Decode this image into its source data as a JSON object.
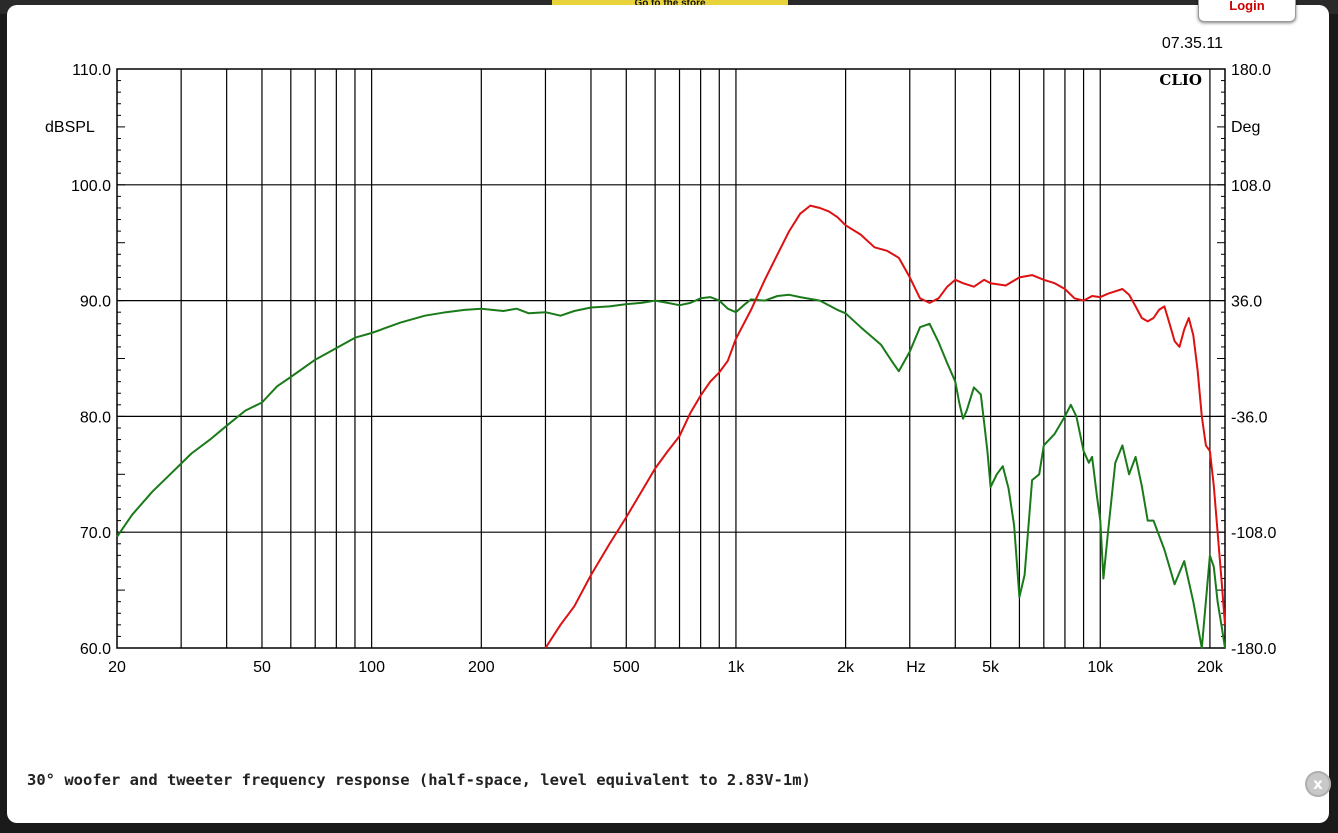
{
  "page": {
    "ad_banner": "Go to the store",
    "login_label": "Login",
    "close_label": "x",
    "caption": "30° woofer and tweeter frequency response (half-space, level equivalent to 2.83V-1m)"
  },
  "chart_data": {
    "type": "line",
    "timestamp": "07.35.11",
    "brand": "CLIO",
    "x_scale": "log",
    "xlim": [
      20,
      22000
    ],
    "x_unit": "Hz",
    "x_ticks": [
      20,
      50,
      100,
      200,
      500,
      1000,
      2000,
      5000,
      10000,
      20000
    ],
    "x_tick_labels": [
      "20",
      "50",
      "100",
      "200",
      "500",
      "1k",
      "2k",
      "5k",
      "10k",
      "20k"
    ],
    "ylabel_left": "dBSPL",
    "ylim_left": [
      60,
      110
    ],
    "y_ticks_left": [
      "110.0",
      "100.0",
      "90.0",
      "80.0",
      "70.0",
      "60.0"
    ],
    "ylabel_right": "Deg",
    "ylim_right": [
      -180,
      180
    ],
    "y_ticks_right": [
      "180.0",
      "108.0",
      "36.0",
      "-36.0",
      "-108.0",
      "-180.0"
    ],
    "grid": true,
    "series": [
      {
        "color": "#1a7a1a",
        "x": [
          20,
          22,
          25,
          28,
          32,
          36,
          40,
          45,
          50,
          55,
          60,
          70,
          80,
          90,
          100,
          120,
          140,
          160,
          180,
          200,
          230,
          250,
          270,
          300,
          330,
          360,
          400,
          450,
          500,
          550,
          600,
          650,
          700,
          750,
          800,
          850,
          900,
          950,
          1000,
          1050,
          1100,
          1200,
          1300,
          1400,
          1500,
          1700,
          1900,
          2000,
          2200,
          2500,
          2700,
          2800,
          3000,
          3200,
          3400,
          3600,
          3800,
          4000,
          4100,
          4200,
          4300,
          4500,
          4700,
          4800,
          4900,
          5000,
          5200,
          5400,
          5600,
          5800,
          6000,
          6200,
          6500,
          6800,
          7000,
          7500,
          8000,
          8300,
          8600,
          9000,
          9300,
          9500,
          9800,
          10000,
          10200,
          10500,
          11000,
          11500,
          12000,
          12500,
          13000,
          13500,
          14000,
          15000,
          16000,
          17000,
          18000,
          19000,
          20000,
          20500,
          21000,
          21500,
          22000
        ],
        "values": [
          69.6,
          71.5,
          73.5,
          75.0,
          76.8,
          78.0,
          79.2,
          80.5,
          81.2,
          82.6,
          83.4,
          84.9,
          85.9,
          86.8,
          87.2,
          88.1,
          88.7,
          89.0,
          89.2,
          89.3,
          89.1,
          89.3,
          88.9,
          89.0,
          88.7,
          89.1,
          89.4,
          89.5,
          89.7,
          89.8,
          90.0,
          89.8,
          89.6,
          89.8,
          90.2,
          90.3,
          90.0,
          89.3,
          89.0,
          89.6,
          90.1,
          90.0,
          90.4,
          90.5,
          90.3,
          90.0,
          89.2,
          88.9,
          87.7,
          86.2,
          84.6,
          83.9,
          85.6,
          87.7,
          88.0,
          86.4,
          84.6,
          83.0,
          81.2,
          79.8,
          80.5,
          82.5,
          81.9,
          79.5,
          77.0,
          73.9,
          75.0,
          75.7,
          73.8,
          70.6,
          64.4,
          66.3,
          74.5,
          75.0,
          77.5,
          78.5,
          80.0,
          81.0,
          80.0,
          77.0,
          76.0,
          76.5,
          73.0,
          71.0,
          66.0,
          70.0,
          76.0,
          77.5,
          75.0,
          76.5,
          74.0,
          71.0,
          71.0,
          68.5,
          65.5,
          67.5,
          64.0,
          60.0,
          68.0,
          67.0,
          64.0,
          62.0,
          60.0
        ]
      },
      {
        "color": "#dd1111",
        "x": [
          300,
          330,
          360,
          400,
          450,
          500,
          550,
          600,
          650,
          700,
          750,
          800,
          850,
          900,
          950,
          1000,
          1100,
          1200,
          1300,
          1400,
          1500,
          1600,
          1700,
          1800,
          1900,
          2000,
          2200,
          2400,
          2600,
          2800,
          3000,
          3200,
          3400,
          3600,
          3800,
          4000,
          4200,
          4500,
          4800,
          5000,
          5500,
          6000,
          6500,
          7000,
          7500,
          8000,
          8500,
          9000,
          9500,
          10000,
          10500,
          11000,
          11500,
          12000,
          12500,
          13000,
          13500,
          14000,
          14500,
          15000,
          15500,
          16000,
          16500,
          17000,
          17500,
          18000,
          18500,
          19000,
          19500,
          20000,
          20500,
          21000,
          21500,
          22000
        ],
        "values": [
          60.0,
          62.0,
          63.6,
          66.3,
          69.0,
          71.3,
          73.5,
          75.5,
          77.0,
          78.3,
          80.3,
          81.8,
          83.0,
          83.8,
          84.8,
          86.7,
          89.2,
          91.8,
          94.0,
          96.0,
          97.5,
          98.2,
          98.0,
          97.7,
          97.2,
          96.5,
          95.7,
          94.6,
          94.3,
          93.7,
          92.0,
          90.2,
          89.8,
          90.2,
          91.2,
          91.8,
          91.5,
          91.2,
          91.8,
          91.5,
          91.3,
          92.0,
          92.2,
          91.8,
          91.5,
          91.0,
          90.2,
          90.0,
          90.4,
          90.3,
          90.6,
          90.8,
          91.0,
          90.5,
          89.5,
          88.5,
          88.2,
          88.5,
          89.2,
          89.5,
          88.0,
          86.5,
          86.0,
          87.5,
          88.5,
          87.0,
          84.0,
          80.0,
          77.5,
          77.0,
          74.0,
          70.0,
          66.0,
          62.0
        ]
      }
    ]
  }
}
